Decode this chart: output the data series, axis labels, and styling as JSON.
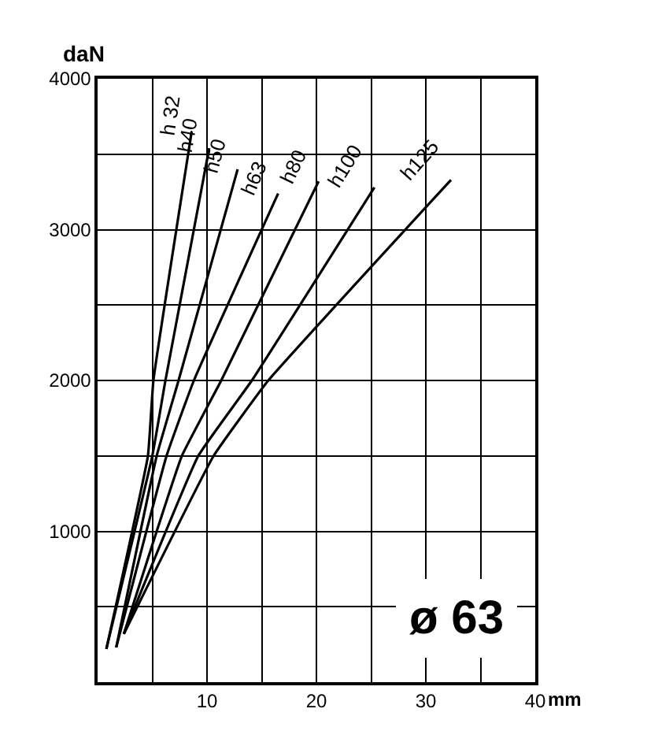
{
  "chart_data": {
    "type": "line",
    "xlabel": "mm",
    "ylabel": "daN",
    "xlim": [
      0,
      40
    ],
    "ylim": [
      0,
      4000
    ],
    "xticks": [
      {
        "value": 5,
        "label": null
      },
      10,
      {
        "value": 15,
        "label": null
      },
      20,
      {
        "value": 25,
        "label": null
      },
      30,
      {
        "value": 35,
        "label": null
      },
      40
    ],
    "yticks": [
      {
        "value": 500,
        "label": null
      },
      1000,
      {
        "value": 1500,
        "label": null
      },
      2000,
      {
        "value": 2500,
        "label": null
      },
      3000,
      {
        "value": 3500,
        "label": null
      },
      4000
    ],
    "grid": true,
    "legend": false,
    "marker": "none",
    "line_style": "solid",
    "series": [
      {
        "name": "h 32",
        "color": "#000000",
        "x": [
          0.8,
          4.6,
          5.1,
          8.6
        ],
        "values": [
          220,
          1500,
          2000,
          3650
        ]
      },
      {
        "name": "h40",
        "color": "#000000",
        "x": [
          0.8,
          5.0,
          6.2,
          10.2
        ],
        "values": [
          220,
          1500,
          2000,
          3540
        ]
      },
      {
        "name": "h50",
        "color": "#000000",
        "x": [
          1.7,
          5.4,
          7.4,
          12.8
        ],
        "values": [
          230,
          1500,
          2000,
          3400
        ]
      },
      {
        "name": "h63",
        "color": "#000000",
        "x": [
          1.7,
          6.3,
          8.8,
          16.5
        ],
        "values": [
          230,
          1500,
          2000,
          3240
        ]
      },
      {
        "name": "h80",
        "color": "#000000",
        "x": [
          2.4,
          7.7,
          11.3,
          20.2
        ],
        "values": [
          320,
          1500,
          2000,
          3320
        ]
      },
      {
        "name": "h100",
        "color": "#000000",
        "x": [
          2.4,
          9.2,
          14.1,
          25.3
        ],
        "values": [
          320,
          1500,
          2000,
          3280
        ]
      },
      {
        "name": "h125",
        "color": "#000000",
        "x": [
          2.4,
          10.6,
          15.6,
          32.3
        ],
        "values": [
          320,
          1500,
          2000,
          3330
        ]
      }
    ],
    "annotations": [
      "ø 63"
    ]
  }
}
